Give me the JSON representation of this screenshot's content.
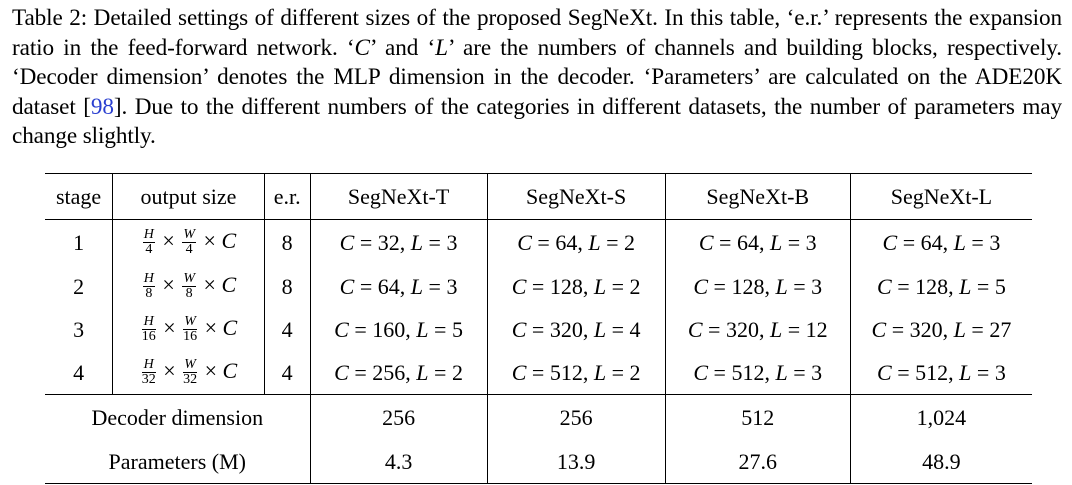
{
  "caption": {
    "part1": "Table 2: Detailed settings of different sizes of the proposed SegNeXt. In this table, ‘e.r.’ represents the expansion ratio in the feed-forward network. ‘",
    "c_sym": "C",
    "part2": "’ and ‘",
    "l_sym": "L",
    "part3": "’ are the numbers of channels and building blocks, respectively. ‘Decoder dimension’ denotes the MLP dimension in the decoder. ‘Parameters’ are calculated on the ADE20K dataset [",
    "citation": "98",
    "part4": "]. Due to the different numbers of the categories in different datasets, the number of parameters may change slightly."
  },
  "table": {
    "headers": [
      "stage",
      "output size",
      "e.r.",
      "SegNeXt-T",
      "SegNeXt-S",
      "SegNeXt-B",
      "SegNeXt-L"
    ],
    "stages": [
      {
        "stage": "1",
        "h": "H",
        "hd": "4",
        "w": "W",
        "wd": "4",
        "c": "C",
        "er": "8",
        "cfg": [
          [
            "C",
            "32",
            "L",
            "3"
          ],
          [
            "C",
            "64",
            "L",
            "2"
          ],
          [
            "C",
            "64",
            "L",
            "3"
          ],
          [
            "C",
            "64",
            "L",
            "3"
          ]
        ]
      },
      {
        "stage": "2",
        "h": "H",
        "hd": "8",
        "w": "W",
        "wd": "8",
        "c": "C",
        "er": "8",
        "cfg": [
          [
            "C",
            "64",
            "L",
            "3"
          ],
          [
            "C",
            "128",
            "L",
            "2"
          ],
          [
            "C",
            "128",
            "L",
            "3"
          ],
          [
            "C",
            "128",
            "L",
            "5"
          ]
        ]
      },
      {
        "stage": "3",
        "h": "H",
        "hd": "16",
        "w": "W",
        "wd": "16",
        "c": "C",
        "er": "4",
        "cfg": [
          [
            "C",
            "160",
            "L",
            "5"
          ],
          [
            "C",
            "320",
            "L",
            "4"
          ],
          [
            "C",
            "320",
            "L",
            "12"
          ],
          [
            "C",
            "320",
            "L",
            "27"
          ]
        ]
      },
      {
        "stage": "4",
        "h": "H",
        "hd": "32",
        "w": "W",
        "wd": "32",
        "c": "C",
        "er": "4",
        "cfg": [
          [
            "C",
            "256",
            "L",
            "2"
          ],
          [
            "C",
            "512",
            "L",
            "2"
          ],
          [
            "C",
            "512",
            "L",
            "3"
          ],
          [
            "C",
            "512",
            "L",
            "3"
          ]
        ]
      }
    ],
    "decoder": {
      "label": "Decoder dimension",
      "values": [
        "256",
        "256",
        "512",
        "1,024"
      ]
    },
    "params": {
      "label": "Parameters (M)",
      "values": [
        "4.3",
        "13.9",
        "27.6",
        "48.9"
      ]
    }
  }
}
